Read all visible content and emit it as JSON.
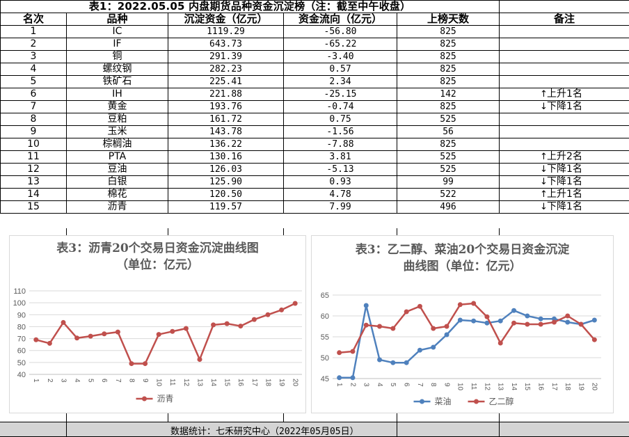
{
  "table": {
    "title": "表1：2022.05.05 内盘期货品种资金沉淀榜（注：截至中午收盘）",
    "headers": [
      "名次",
      "品种",
      "沉淀资金（亿元）",
      "资金流向（亿元）",
      "上榜天数",
      "备注"
    ],
    "rows": [
      {
        "rank": "1",
        "name": "IC",
        "capital": "1119.29",
        "flow": "-56.80",
        "days": "825",
        "remark": ""
      },
      {
        "rank": "2",
        "name": "IF",
        "capital": "643.73",
        "flow": "-65.22",
        "days": "825",
        "remark": ""
      },
      {
        "rank": "3",
        "name": "铜",
        "capital": "291.39",
        "flow": "-3.40",
        "days": "825",
        "remark": ""
      },
      {
        "rank": "4",
        "name": "螺纹钢",
        "capital": "282.23",
        "flow": "0.57",
        "days": "825",
        "remark": ""
      },
      {
        "rank": "5",
        "name": "铁矿石",
        "capital": "225.41",
        "flow": "2.34",
        "days": "825",
        "remark": ""
      },
      {
        "rank": "6",
        "name": "IH",
        "capital": "221.88",
        "flow": "-25.15",
        "days": "142",
        "remark": "上升1名",
        "dir": "up"
      },
      {
        "rank": "7",
        "name": "黄金",
        "capital": "193.76",
        "flow": "-0.74",
        "days": "825",
        "remark": "下降1名",
        "dir": "down"
      },
      {
        "rank": "8",
        "name": "豆粕",
        "capital": "161.72",
        "flow": "0.75",
        "days": "525",
        "remark": ""
      },
      {
        "rank": "9",
        "name": "玉米",
        "capital": "143.78",
        "flow": "-1.56",
        "days": "56",
        "remark": ""
      },
      {
        "rank": "10",
        "name": "棕榈油",
        "capital": "136.22",
        "flow": "-7.88",
        "days": "825",
        "remark": ""
      },
      {
        "rank": "11",
        "name": "PTA",
        "capital": "130.16",
        "flow": "3.81",
        "days": "525",
        "remark": "上升2名",
        "dir": "up"
      },
      {
        "rank": "12",
        "name": "豆油",
        "capital": "126.03",
        "flow": "-5.13",
        "days": "525",
        "remark": "下降1名",
        "dir": "down"
      },
      {
        "rank": "13",
        "name": "白银",
        "capital": "125.90",
        "flow": "0.93",
        "days": "99",
        "remark": "下降1名",
        "dir": "down"
      },
      {
        "rank": "14",
        "name": "棉花",
        "capital": "120.50",
        "flow": "4.78",
        "days": "522",
        "remark": "上升1名",
        "dir": "up"
      },
      {
        "rank": "15",
        "name": "沥青",
        "capital": "119.57",
        "flow": "7.99",
        "days": "496",
        "remark": "下降1名",
        "dir": "down"
      }
    ]
  },
  "footer": {
    "text": "数据统计：七禾研究中心（2022年05月05日）"
  },
  "chart_data": [
    {
      "type": "line",
      "title_line1": "表3：沥青20个交易日资金沉淀曲线图",
      "title_line2": "（单位：亿元）",
      "x": [
        "1",
        "2",
        "3",
        "4",
        "5",
        "6",
        "7",
        "8",
        "9",
        "10",
        "11",
        "12",
        "13",
        "14",
        "15",
        "16",
        "17",
        "18",
        "19",
        "20"
      ],
      "series": [
        {
          "name": "沥青",
          "color": "#c0504d",
          "values": [
            69,
            66,
            83.5,
            70.5,
            72,
            74,
            75.5,
            49,
            49,
            73.5,
            76,
            78.5,
            52.5,
            81.5,
            82.5,
            80.5,
            86,
            90,
            94,
            99.5
          ]
        }
      ],
      "ylim": [
        40,
        110
      ],
      "yticks": [
        40,
        50,
        60,
        70,
        80,
        90,
        100,
        110
      ],
      "grid": true,
      "legend": "bottom"
    },
    {
      "type": "line",
      "title_line1": "表3：乙二醇、菜油20个交易日资金沉淀",
      "title_line2": "曲线图（单位：亿元）",
      "x": [
        "1",
        "2",
        "3",
        "4",
        "5",
        "6",
        "7",
        "8",
        "9",
        "10",
        "11",
        "12",
        "13",
        "14",
        "15",
        "16",
        "17",
        "18",
        "19",
        "20"
      ],
      "series": [
        {
          "name": "菜油",
          "color": "#4f81bd",
          "values": [
            45.2,
            45.2,
            62.5,
            49.5,
            48.8,
            48.8,
            51.8,
            52.5,
            55.5,
            59,
            58.8,
            58.3,
            58.8,
            61.3,
            60,
            59.3,
            59.3,
            58.5,
            58,
            59
          ]
        },
        {
          "name": "乙二醇",
          "color": "#c0504d",
          "values": [
            51.2,
            51.5,
            57.8,
            57.5,
            57,
            61,
            62.3,
            57,
            57.5,
            62.7,
            63,
            59.8,
            53.5,
            58.3,
            58,
            58,
            58.5,
            60,
            58,
            54.3
          ]
        }
      ],
      "ylim": [
        45,
        65
      ],
      "yticks": [
        45,
        50,
        55,
        60,
        65
      ],
      "grid": true,
      "legend": "bottom"
    }
  ]
}
